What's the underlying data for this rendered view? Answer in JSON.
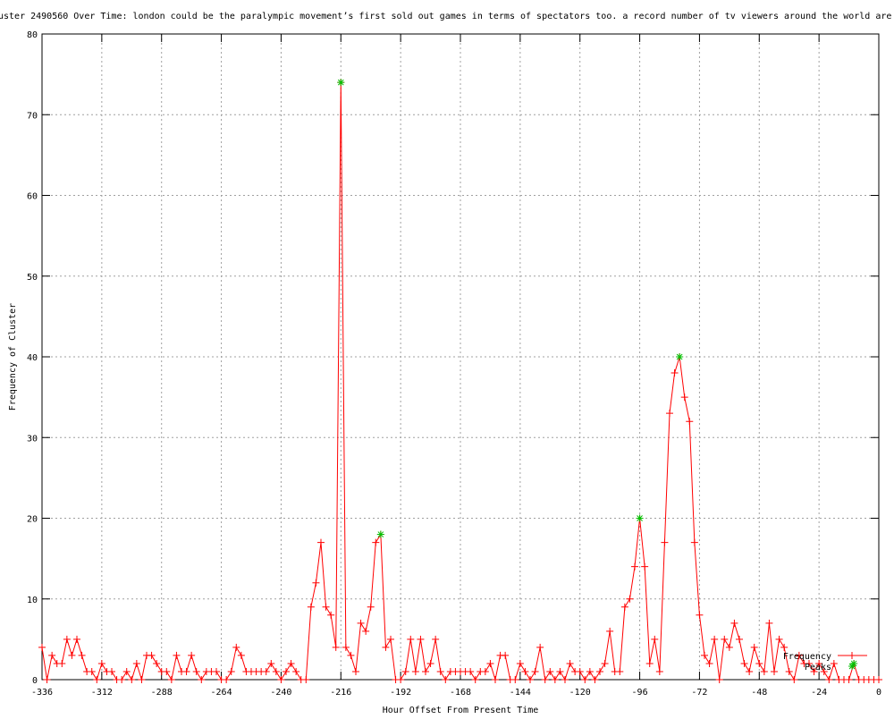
{
  "chart_data": {
    "type": "line",
    "title": "uster 2490560 Over Time: london could be the paralympic movement’s first sold out games in terms of spectators too. a record number of tv viewers around the world are",
    "xlabel": "Hour Offset From Present Time",
    "ylabel": "Frequency of Cluster",
    "xlim": [
      -336,
      0
    ],
    "ylim": [
      0,
      80
    ],
    "xticks": [
      -336,
      -312,
      -288,
      -264,
      -240,
      -216,
      -192,
      -168,
      -144,
      -120,
      -96,
      -72,
      -48,
      -24,
      0
    ],
    "yticks": [
      0,
      10,
      20,
      30,
      40,
      50,
      60,
      70,
      80
    ],
    "grid": true,
    "legend_placement": "bottom-right",
    "series": [
      {
        "name": "Frequency",
        "color": "#ff0000",
        "marker": "plus",
        "x": [
          -336,
          -334,
          -332,
          -330,
          -328,
          -326,
          -324,
          -322,
          -320,
          -318,
          -316,
          -314,
          -312,
          -310,
          -308,
          -306,
          -304,
          -302,
          -300,
          -298,
          -296,
          -294,
          -292,
          -290,
          -288,
          -286,
          -284,
          -282,
          -280,
          -278,
          -276,
          -274,
          -272,
          -270,
          -268,
          -266,
          -264,
          -262,
          -260,
          -258,
          -256,
          -254,
          -252,
          -250,
          -248,
          -246,
          -244,
          -242,
          -240,
          -238,
          -236,
          -234,
          -232,
          -230,
          -228,
          -226,
          -224,
          -222,
          -220,
          -218,
          -216,
          -214,
          -212,
          -210,
          -208,
          -206,
          -204,
          -202,
          -200,
          -198,
          -196,
          -194,
          -192,
          -190,
          -188,
          -186,
          -184,
          -182,
          -180,
          -178,
          -176,
          -174,
          -172,
          -170,
          -168,
          -166,
          -164,
          -162,
          -160,
          -158,
          -156,
          -154,
          -152,
          -150,
          -148,
          -146,
          -144,
          -142,
          -140,
          -138,
          -136,
          -134,
          -132,
          -130,
          -128,
          -126,
          -124,
          -122,
          -120,
          -118,
          -116,
          -114,
          -112,
          -110,
          -108,
          -106,
          -104,
          -102,
          -100,
          -98,
          -96,
          -94,
          -92,
          -90,
          -88,
          -86,
          -84,
          -82,
          -80,
          -78,
          -76,
          -74,
          -72,
          -70,
          -68,
          -66,
          -64,
          -62,
          -60,
          -58,
          -56,
          -54,
          -52,
          -50,
          -48,
          -46,
          -44,
          -42,
          -40,
          -38,
          -36,
          -34,
          -32,
          -30,
          -28,
          -26,
          -24,
          -22,
          -20,
          -18,
          -16,
          -14,
          -12,
          -10,
          -8,
          -6,
          -4,
          -2,
          0
        ],
        "y": [
          4,
          0,
          3,
          2,
          2,
          5,
          3,
          5,
          3,
          1,
          1,
          0,
          2,
          1,
          1,
          0,
          0,
          1,
          0,
          2,
          0,
          3,
          3,
          2,
          1,
          1,
          0,
          3,
          1,
          1,
          3,
          1,
          0,
          1,
          1,
          1,
          0,
          0,
          1,
          4,
          3,
          1,
          1,
          1,
          1,
          1,
          2,
          1,
          0,
          1,
          2,
          1,
          0,
          0,
          9,
          12,
          17,
          9,
          8,
          4,
          74,
          4,
          3,
          1,
          7,
          6,
          9,
          17,
          18,
          4,
          5,
          0,
          0,
          1,
          5,
          1,
          5,
          1,
          2,
          5,
          1,
          0,
          1,
          1,
          1,
          1,
          1,
          0,
          1,
          1,
          2,
          0,
          3,
          3,
          0,
          0,
          2,
          1,
          0,
          1,
          4,
          0,
          1,
          0,
          1,
          0,
          2,
          1,
          1,
          0,
          1,
          0,
          1,
          2,
          6,
          1,
          1,
          9,
          10,
          14,
          20,
          14,
          2,
          5,
          1,
          17,
          33,
          38,
          40,
          35,
          32,
          17,
          8,
          3,
          2,
          5,
          0,
          5,
          4,
          7,
          5,
          2,
          1,
          4,
          2,
          1,
          7,
          1,
          5,
          4,
          1,
          0,
          3,
          2,
          2,
          1,
          2,
          1,
          0,
          2,
          0,
          0,
          0,
          2,
          0,
          0,
          0,
          0,
          0
        ]
      },
      {
        "name": "Peaks",
        "color": "#00c000",
        "marker": "asterisk",
        "x": [
          -216,
          -200,
          -96,
          -80,
          -10
        ],
        "y": [
          74,
          18,
          20,
          40,
          2
        ]
      }
    ]
  }
}
